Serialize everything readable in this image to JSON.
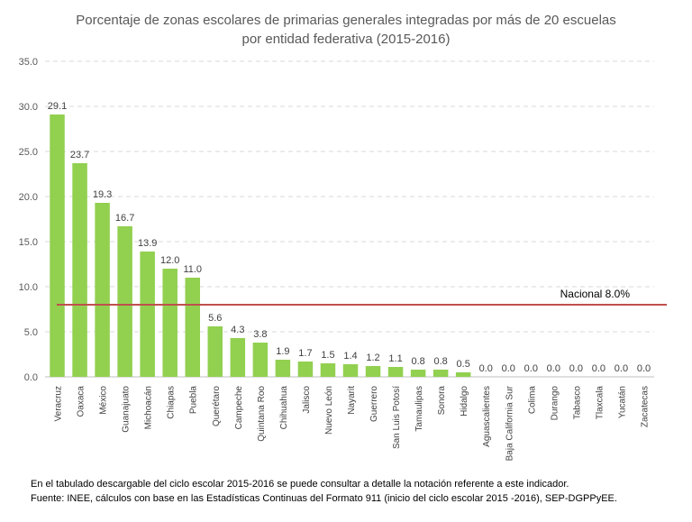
{
  "chart_data": {
    "type": "bar",
    "title_lines": [
      "Porcentaje de zonas escolares de primarias generales integradas por más de 20 escuelas",
      "por entidad federativa (2015-2016)"
    ],
    "categories": [
      "Veracruz",
      "Oaxaca",
      "México",
      "Guanajuato",
      "Michoacán",
      "Chiapas",
      "Puebla",
      "Querétaro",
      "Campeche",
      "Quintana Roo",
      "Chihuahua",
      "Jalisco",
      "Nuevo León",
      "Nayarit",
      "Guerrero",
      "San Luis Potosí",
      "Tamaulipas",
      "Sonora",
      "Hidalgo",
      "Aguascalientes",
      "Baja California Sur",
      "Colima",
      "Durango",
      "Tabasco",
      "Tlaxcala",
      "Yucatán",
      "Zacatecas"
    ],
    "values": [
      29.1,
      23.7,
      19.3,
      16.7,
      13.9,
      12.0,
      11.0,
      5.6,
      4.3,
      3.8,
      1.9,
      1.7,
      1.5,
      1.4,
      1.2,
      1.1,
      0.8,
      0.8,
      0.5,
      0.0,
      0.0,
      0.0,
      0.0,
      0.0,
      0.0,
      0.0,
      0.0
    ],
    "value_labels": [
      "29.1",
      "23.7",
      "19.3",
      "16.7",
      "13.9",
      "12.0",
      "11.0",
      "5.6",
      "4.3",
      "3.8",
      "1.9",
      "1.7",
      "1.5",
      "1.4",
      "1.2",
      "1.1",
      "0.8",
      "0.8",
      "0.5",
      "0.0",
      "0.0",
      "0.0",
      "0.0",
      "0.0",
      "0.0",
      "0.0",
      "0.0"
    ],
    "y_ticks": [
      "0.0",
      "5.0",
      "10.0",
      "15.0",
      "20.0",
      "25.0",
      "30.0",
      "35.0"
    ],
    "ylim": [
      0,
      35
    ],
    "grid": true,
    "reference_line": {
      "label": "Nacional 8.0%",
      "value": 8.0,
      "color": "#c0504d"
    },
    "bar_color": "#92d050"
  },
  "footnotes": {
    "line1": "En el tabulado descargable del ciclo escolar 2015-2016 se puede consultar a detalle la notación referente a este indicador.",
    "line2": "Fuente: INEE, cálculos con base en las Estadísticas Continuas del Formato 911 (inicio del ciclo escolar 2015 -2016), SEP-DGPPyEE."
  }
}
